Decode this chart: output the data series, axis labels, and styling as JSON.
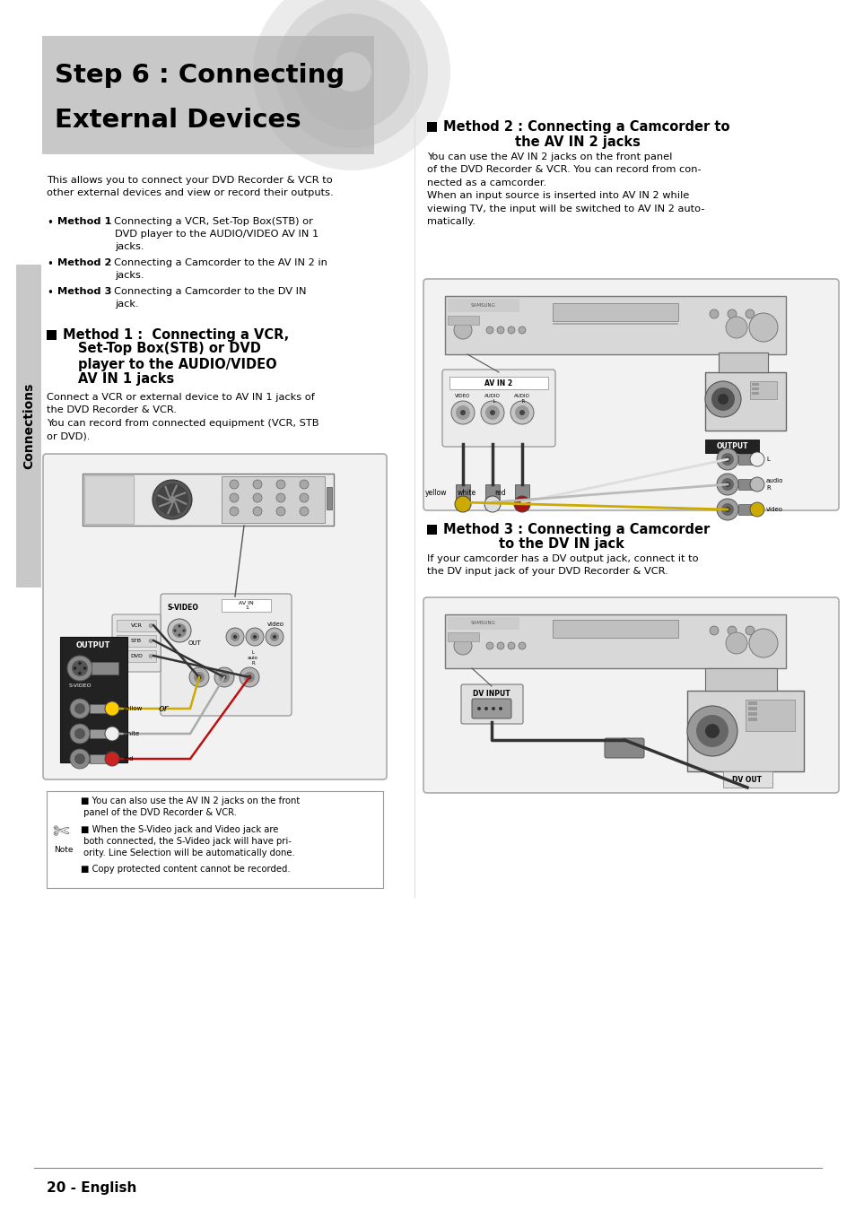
{
  "bg_color": "#ffffff",
  "title_box_color": "#c8c8c8",
  "title_text1": "Step 6 : Connecting",
  "title_text2": "External Devices",
  "sidebar_color": "#c8c8c8",
  "sidebar_text": "Connections",
  "body_text_intro": "This allows you to connect your DVD Recorder & VCR to\nother external devices and view or record their outputs.",
  "method1_body": "Connect a VCR or external device to AV IN 1 jacks of\nthe DVD Recorder & VCR.\nYou can record from connected equipment (VCR, STB\nor DVD).",
  "method2_body": "You can use the AV IN 2 jacks on the front panel\nof the DVD Recorder & VCR. You can record from con-\nnected as a camcorder.\nWhen an input source is inserted into AV IN 2 while\nviewing TV, the input will be switched to AV IN 2 auto-\nmatically.",
  "method3_body": "If your camcorder has a DV output jack, connect it to\nthe DV input jack of your DVD Recorder & VCR.",
  "note_text1": " You can also use the AV IN 2 jacks on the front\n panel of the DVD Recorder & VCR.",
  "note_text2": " When the S-Video jack and Video jack are\n both connected, the S-Video jack will have pri-\n ority. Line Selection will be automatically done.",
  "note_text3": " Copy protected content cannot be recorded.",
  "page_num": "20 - English",
  "black": "#000000",
  "dark_gray": "#333333",
  "mid_gray": "#666666",
  "light_gray": "#cccccc",
  "white": "#ffffff",
  "box_bg": "#f2f2f2",
  "device_gray": "#d8d8d8",
  "device_dark": "#888888"
}
